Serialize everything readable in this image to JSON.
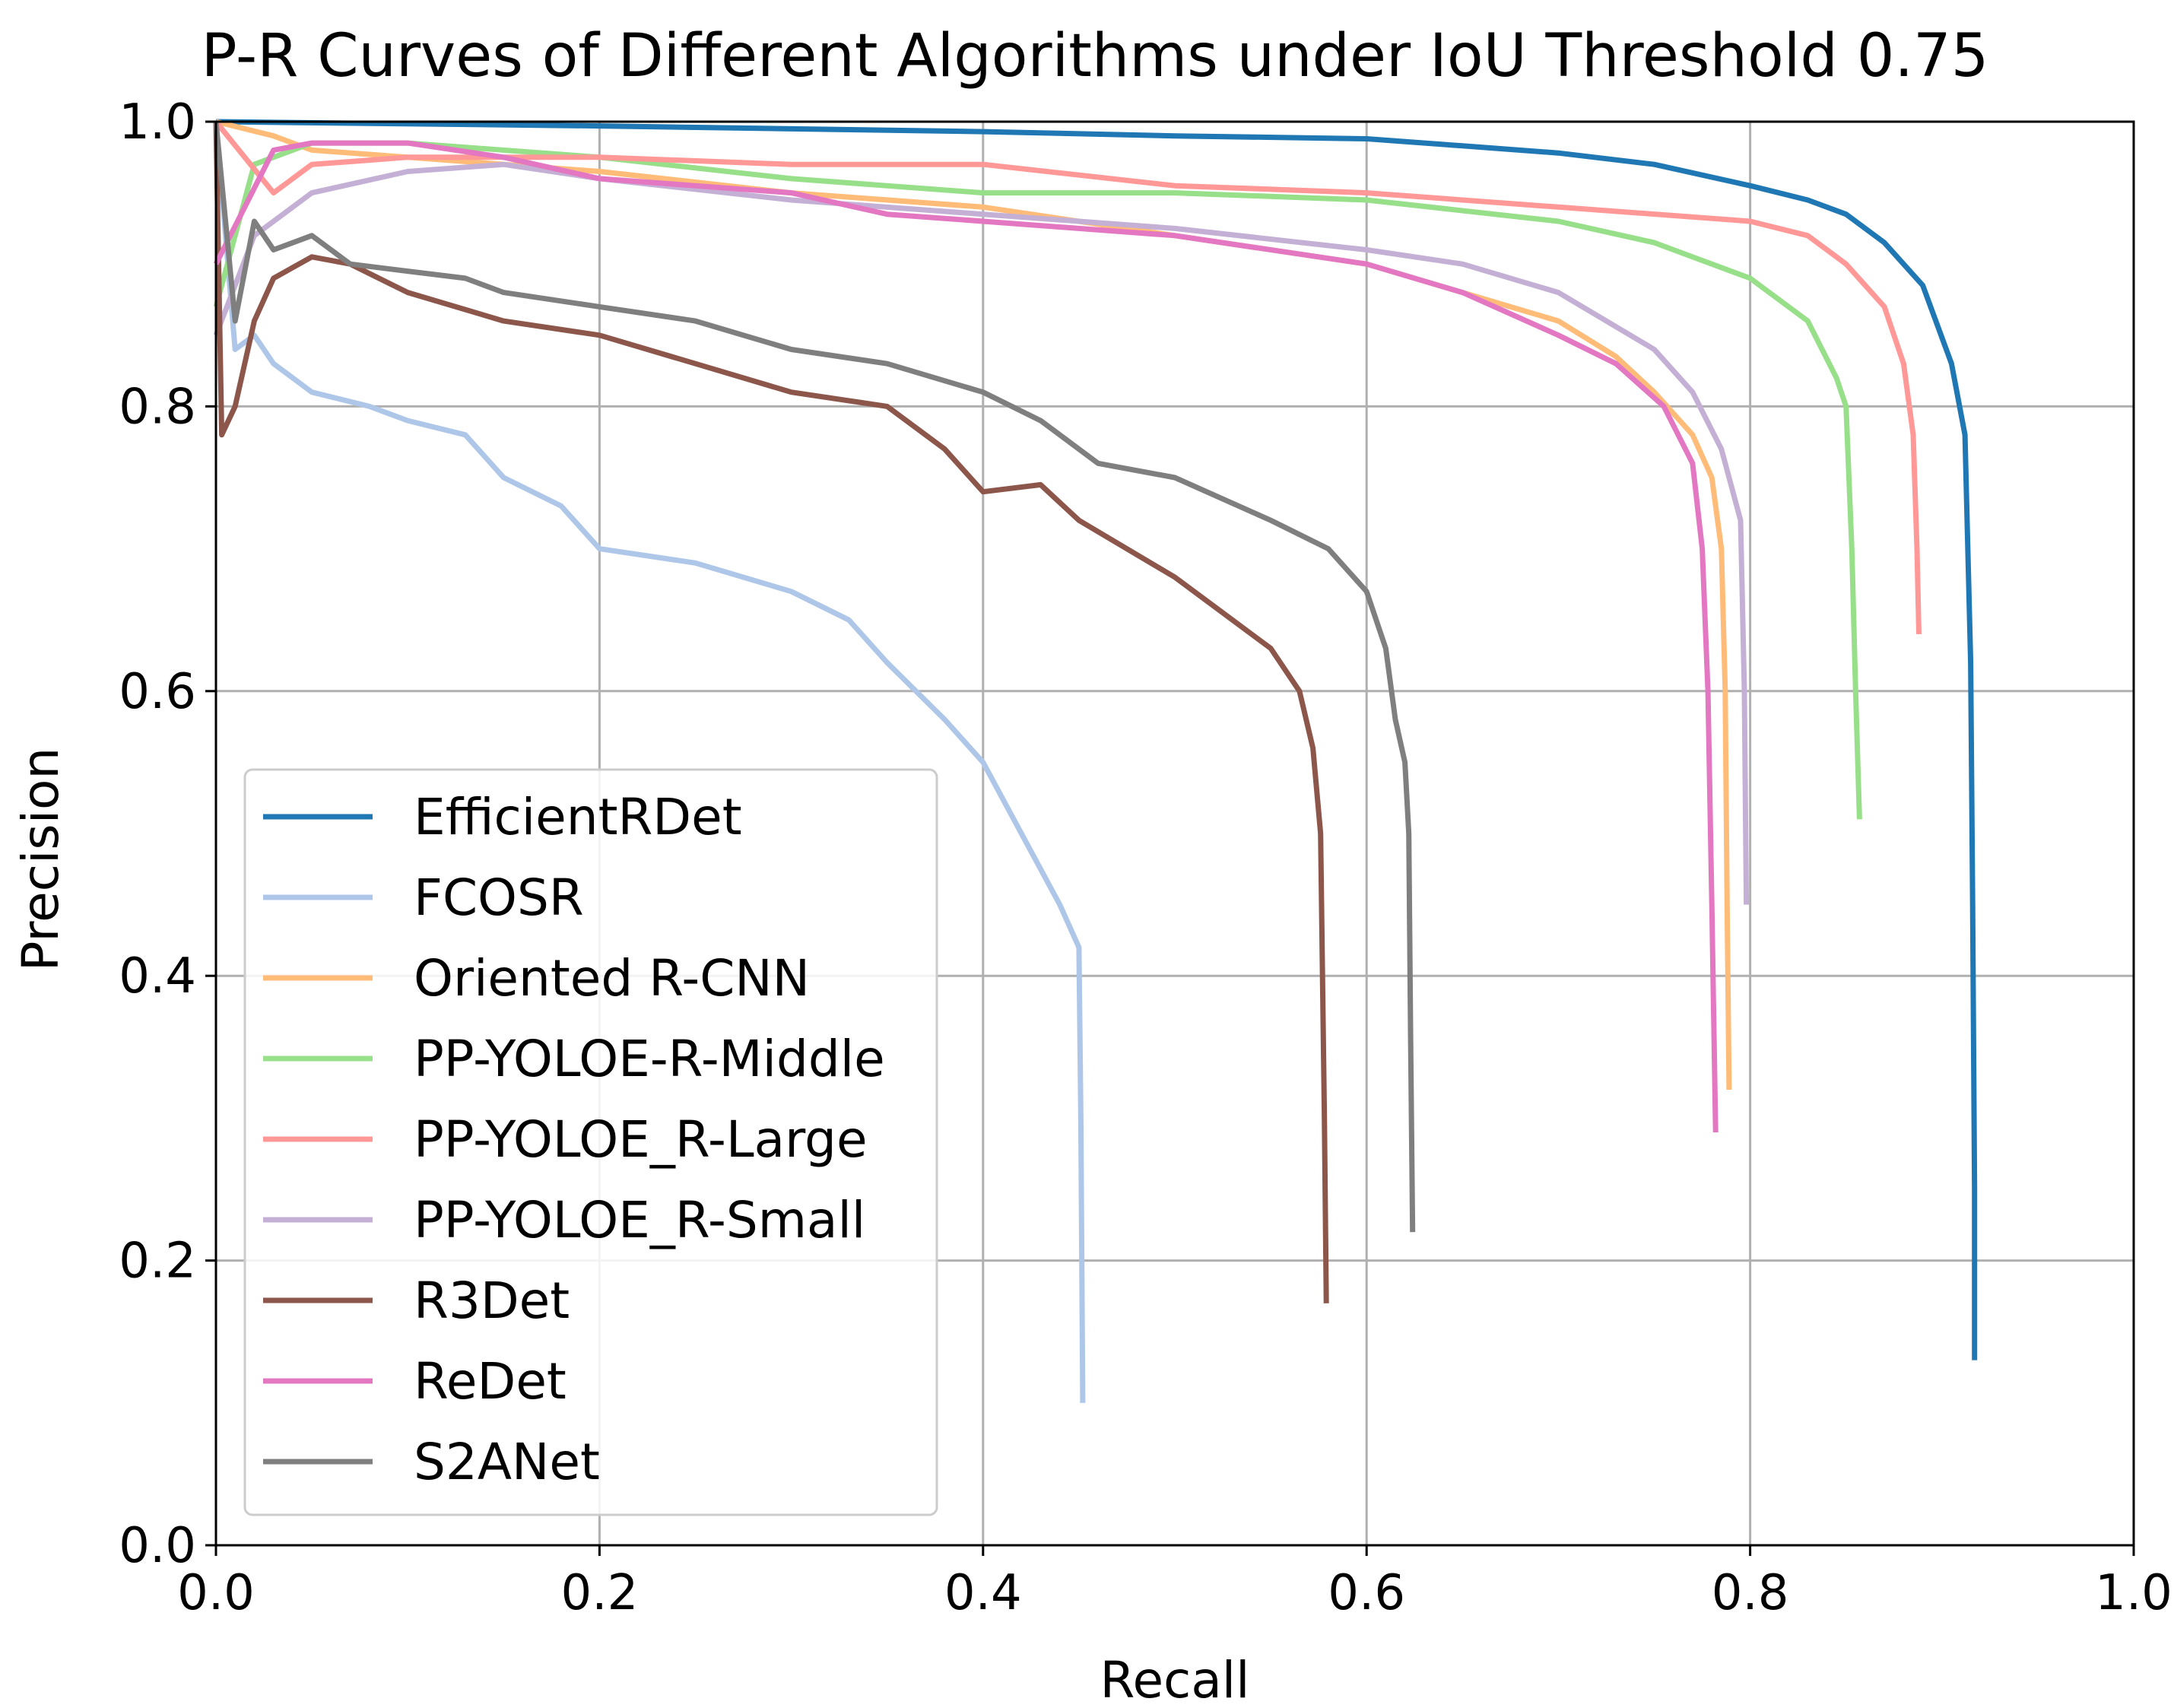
{
  "chart_data": {
    "type": "line",
    "title": "P-R Curves of Different Algorithms under IoU Threshold 0.75",
    "xlabel": "Recall",
    "ylabel": "Precision",
    "xlim": [
      0.0,
      1.0
    ],
    "ylim": [
      0.0,
      1.0
    ],
    "xticks": [
      "0.0",
      "0.2",
      "0.4",
      "0.6",
      "0.8",
      "1.0"
    ],
    "yticks": [
      "0.0",
      "0.2",
      "0.4",
      "0.6",
      "0.8",
      "1.0"
    ],
    "grid": true,
    "legend_position": "lower-left",
    "series": [
      {
        "name": "EfficientRDet",
        "color": "#1f77b4",
        "points": [
          [
            0.0,
            1.0
          ],
          [
            0.2,
            0.997
          ],
          [
            0.3,
            0.995
          ],
          [
            0.4,
            0.993
          ],
          [
            0.5,
            0.99
          ],
          [
            0.6,
            0.988
          ],
          [
            0.65,
            0.983
          ],
          [
            0.7,
            0.978
          ],
          [
            0.75,
            0.97
          ],
          [
            0.8,
            0.955
          ],
          [
            0.83,
            0.945
          ],
          [
            0.85,
            0.935
          ],
          [
            0.87,
            0.915
          ],
          [
            0.89,
            0.885
          ],
          [
            0.905,
            0.83
          ],
          [
            0.912,
            0.78
          ],
          [
            0.915,
            0.62
          ],
          [
            0.916,
            0.45
          ],
          [
            0.917,
            0.25
          ],
          [
            0.917,
            0.13
          ]
        ]
      },
      {
        "name": "FCOSR",
        "color": "#aec7e8",
        "points": [
          [
            0.0,
            1.0
          ],
          [
            0.01,
            0.84
          ],
          [
            0.02,
            0.85
          ],
          [
            0.03,
            0.83
          ],
          [
            0.05,
            0.81
          ],
          [
            0.08,
            0.8
          ],
          [
            0.1,
            0.79
          ],
          [
            0.13,
            0.78
          ],
          [
            0.15,
            0.75
          ],
          [
            0.18,
            0.73
          ],
          [
            0.2,
            0.7
          ],
          [
            0.25,
            0.69
          ],
          [
            0.3,
            0.67
          ],
          [
            0.33,
            0.65
          ],
          [
            0.35,
            0.62
          ],
          [
            0.38,
            0.58
          ],
          [
            0.4,
            0.55
          ],
          [
            0.42,
            0.5
          ],
          [
            0.44,
            0.45
          ],
          [
            0.45,
            0.42
          ],
          [
            0.451,
            0.3
          ],
          [
            0.452,
            0.1
          ]
        ]
      },
      {
        "name": "Oriented R-CNN",
        "color": "#ffbb78",
        "points": [
          [
            0.0,
            1.0
          ],
          [
            0.03,
            0.99
          ],
          [
            0.05,
            0.98
          ],
          [
            0.1,
            0.975
          ],
          [
            0.2,
            0.965
          ],
          [
            0.3,
            0.95
          ],
          [
            0.4,
            0.94
          ],
          [
            0.5,
            0.92
          ],
          [
            0.6,
            0.9
          ],
          [
            0.65,
            0.88
          ],
          [
            0.7,
            0.86
          ],
          [
            0.73,
            0.835
          ],
          [
            0.75,
            0.81
          ],
          [
            0.77,
            0.78
          ],
          [
            0.78,
            0.75
          ],
          [
            0.785,
            0.7
          ],
          [
            0.787,
            0.6
          ],
          [
            0.788,
            0.45
          ],
          [
            0.789,
            0.32
          ]
        ]
      },
      {
        "name": "PP-YOLOE-R-Middle",
        "color": "#98df8a",
        "points": [
          [
            0.0,
            0.87
          ],
          [
            0.02,
            0.97
          ],
          [
            0.05,
            0.985
          ],
          [
            0.1,
            0.985
          ],
          [
            0.2,
            0.975
          ],
          [
            0.3,
            0.96
          ],
          [
            0.4,
            0.95
          ],
          [
            0.5,
            0.95
          ],
          [
            0.6,
            0.945
          ],
          [
            0.7,
            0.93
          ],
          [
            0.75,
            0.915
          ],
          [
            0.8,
            0.89
          ],
          [
            0.83,
            0.86
          ],
          [
            0.845,
            0.82
          ],
          [
            0.85,
            0.8
          ],
          [
            0.853,
            0.7
          ],
          [
            0.855,
            0.6
          ],
          [
            0.857,
            0.51
          ]
        ]
      },
      {
        "name": "PP-YOLOE_R-Large",
        "color": "#ff9896",
        "points": [
          [
            0.0,
            1.0
          ],
          [
            0.03,
            0.95
          ],
          [
            0.05,
            0.97
          ],
          [
            0.1,
            0.975
          ],
          [
            0.2,
            0.975
          ],
          [
            0.3,
            0.97
          ],
          [
            0.4,
            0.97
          ],
          [
            0.5,
            0.955
          ],
          [
            0.6,
            0.95
          ],
          [
            0.7,
            0.94
          ],
          [
            0.8,
            0.93
          ],
          [
            0.83,
            0.92
          ],
          [
            0.85,
            0.9
          ],
          [
            0.87,
            0.87
          ],
          [
            0.88,
            0.83
          ],
          [
            0.885,
            0.78
          ],
          [
            0.887,
            0.7
          ],
          [
            0.888,
            0.64
          ]
        ]
      },
      {
        "name": "PP-YOLOE_R-Small",
        "color": "#c5b0d5",
        "points": [
          [
            0.0,
            0.85
          ],
          [
            0.02,
            0.92
          ],
          [
            0.05,
            0.95
          ],
          [
            0.1,
            0.965
          ],
          [
            0.15,
            0.97
          ],
          [
            0.2,
            0.96
          ],
          [
            0.3,
            0.945
          ],
          [
            0.4,
            0.935
          ],
          [
            0.5,
            0.925
          ],
          [
            0.6,
            0.91
          ],
          [
            0.65,
            0.9
          ],
          [
            0.7,
            0.88
          ],
          [
            0.75,
            0.84
          ],
          [
            0.77,
            0.81
          ],
          [
            0.785,
            0.77
          ],
          [
            0.795,
            0.72
          ],
          [
            0.797,
            0.6
          ],
          [
            0.798,
            0.45
          ]
        ]
      },
      {
        "name": "R3Det",
        "color": "#8c564b",
        "points": [
          [
            0.0,
            1.0
          ],
          [
            0.003,
            0.78
          ],
          [
            0.01,
            0.8
          ],
          [
            0.02,
            0.86
          ],
          [
            0.03,
            0.89
          ],
          [
            0.05,
            0.905
          ],
          [
            0.07,
            0.9
          ],
          [
            0.1,
            0.88
          ],
          [
            0.15,
            0.86
          ],
          [
            0.2,
            0.85
          ],
          [
            0.25,
            0.83
          ],
          [
            0.3,
            0.81
          ],
          [
            0.35,
            0.8
          ],
          [
            0.38,
            0.77
          ],
          [
            0.4,
            0.74
          ],
          [
            0.43,
            0.745
          ],
          [
            0.45,
            0.72
          ],
          [
            0.5,
            0.68
          ],
          [
            0.53,
            0.65
          ],
          [
            0.55,
            0.63
          ],
          [
            0.565,
            0.6
          ],
          [
            0.572,
            0.56
          ],
          [
            0.576,
            0.5
          ],
          [
            0.577,
            0.4
          ],
          [
            0.578,
            0.3
          ],
          [
            0.579,
            0.17
          ]
        ]
      },
      {
        "name": "ReDet",
        "color": "#e377c2",
        "points": [
          [
            0.0,
            0.9
          ],
          [
            0.03,
            0.98
          ],
          [
            0.05,
            0.985
          ],
          [
            0.1,
            0.985
          ],
          [
            0.15,
            0.975
          ],
          [
            0.2,
            0.96
          ],
          [
            0.3,
            0.95
          ],
          [
            0.35,
            0.935
          ],
          [
            0.4,
            0.93
          ],
          [
            0.5,
            0.92
          ],
          [
            0.6,
            0.9
          ],
          [
            0.65,
            0.88
          ],
          [
            0.7,
            0.85
          ],
          [
            0.73,
            0.83
          ],
          [
            0.755,
            0.8
          ],
          [
            0.77,
            0.76
          ],
          [
            0.775,
            0.7
          ],
          [
            0.778,
            0.6
          ],
          [
            0.78,
            0.45
          ],
          [
            0.782,
            0.29
          ]
        ]
      },
      {
        "name": "S2ANet",
        "color": "#7f7f7f",
        "points": [
          [
            0.0,
            1.0
          ],
          [
            0.01,
            0.86
          ],
          [
            0.02,
            0.93
          ],
          [
            0.03,
            0.91
          ],
          [
            0.05,
            0.92
          ],
          [
            0.07,
            0.9
          ],
          [
            0.1,
            0.895
          ],
          [
            0.13,
            0.89
          ],
          [
            0.15,
            0.88
          ],
          [
            0.2,
            0.87
          ],
          [
            0.25,
            0.86
          ],
          [
            0.3,
            0.84
          ],
          [
            0.35,
            0.83
          ],
          [
            0.4,
            0.81
          ],
          [
            0.43,
            0.79
          ],
          [
            0.46,
            0.76
          ],
          [
            0.5,
            0.75
          ],
          [
            0.55,
            0.72
          ],
          [
            0.58,
            0.7
          ],
          [
            0.6,
            0.67
          ],
          [
            0.61,
            0.63
          ],
          [
            0.615,
            0.58
          ],
          [
            0.62,
            0.55
          ],
          [
            0.622,
            0.5
          ],
          [
            0.623,
            0.35
          ],
          [
            0.624,
            0.22
          ]
        ]
      }
    ]
  }
}
